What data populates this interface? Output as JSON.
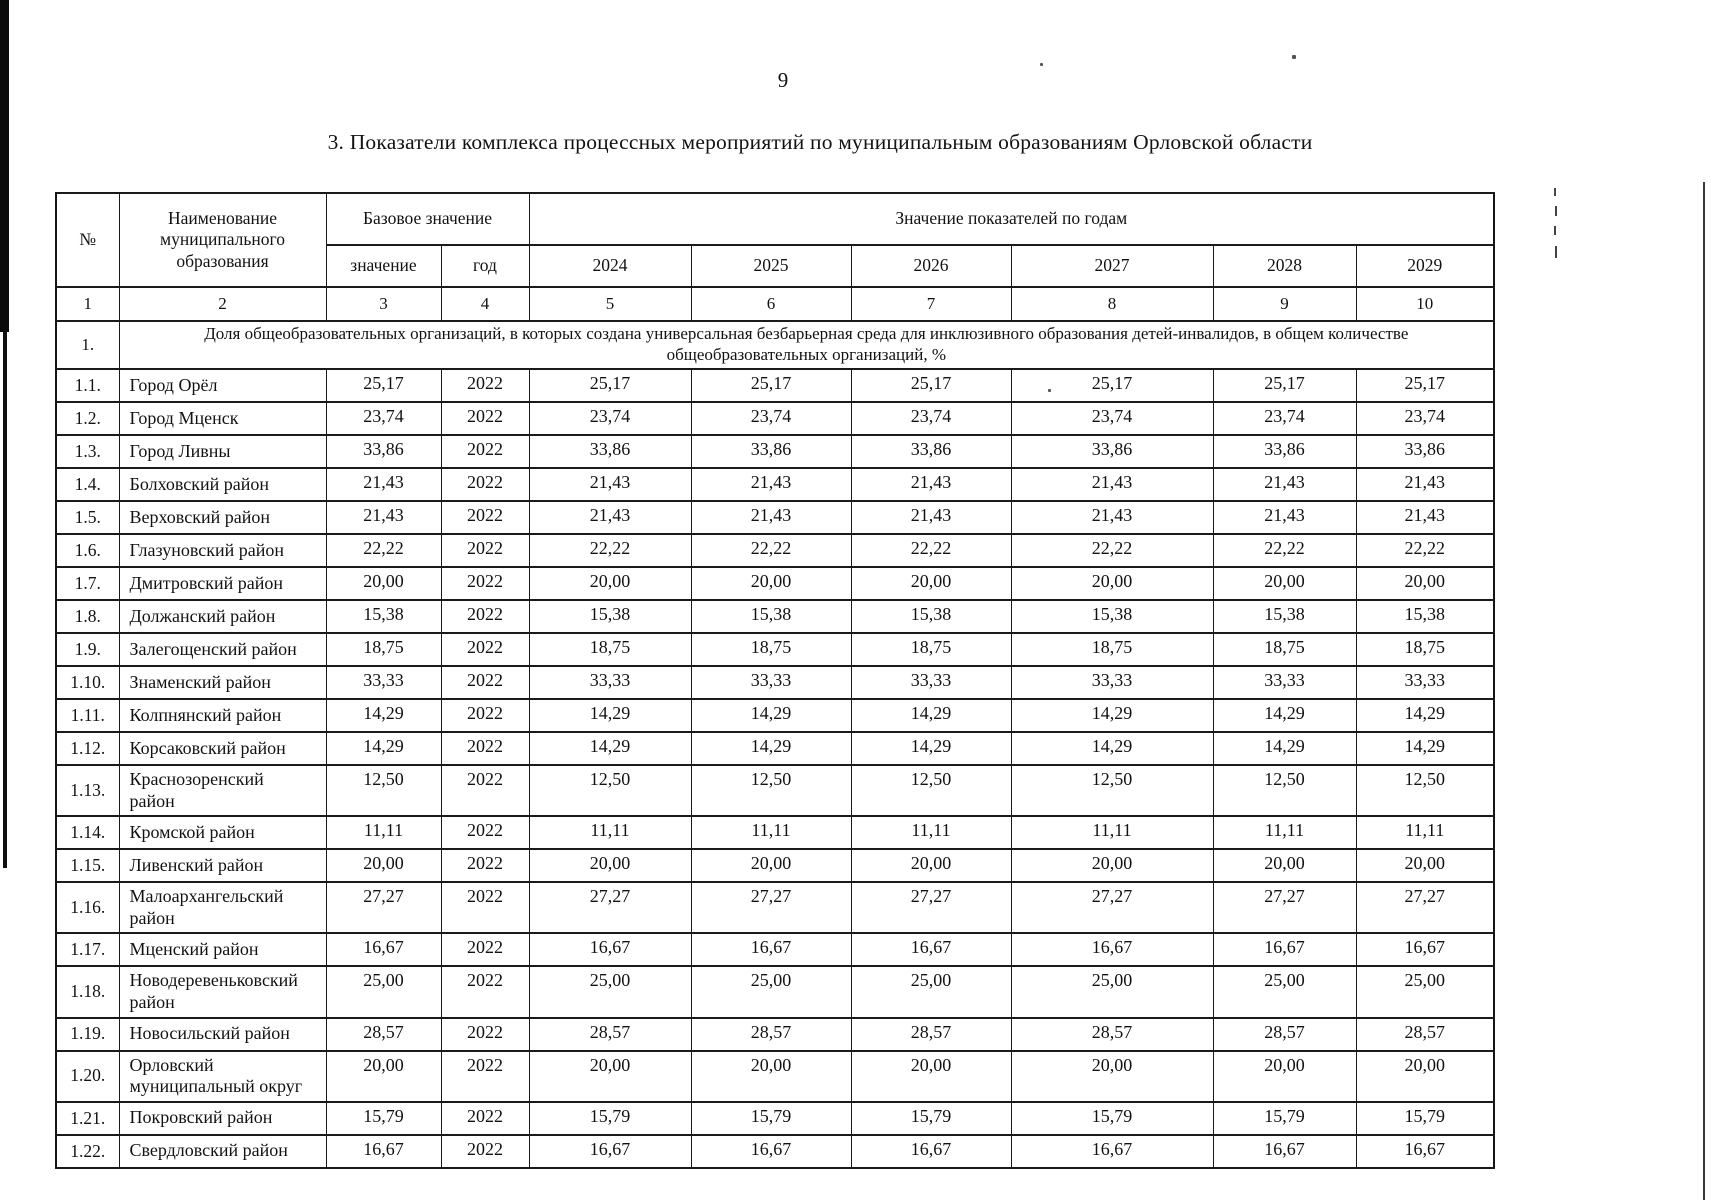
{
  "page": {
    "number": "9",
    "title": "3. Показатели комплекса процессных мероприятий по муниципальным образованиям Орловской области"
  },
  "table": {
    "header": {
      "num": "№",
      "name": "Наименование муниципального образования",
      "base_group": "Базовое значение",
      "base_value": "значение",
      "base_year": "год",
      "years_group": "Значение показателей по годам",
      "years": [
        "2024",
        "2025",
        "2026",
        "2027",
        "2028",
        "2029"
      ],
      "col_numbers": [
        "1",
        "2",
        "3",
        "4",
        "5",
        "6",
        "7",
        "8",
        "9",
        "10"
      ]
    },
    "section": {
      "num": "1.",
      "label": "Доля общеобразовательных организаций, в которых создана универсальная безбарьерная среда для инклюзивного образования детей-инвалидов, в общем количестве общеобразовательных организаций, %"
    },
    "rows": [
      {
        "num": "1.1.",
        "name": "Город Орёл",
        "value": "25,17",
        "year": "2022",
        "year_values": [
          "25,17",
          "25,17",
          "25,17",
          "25,17",
          "25,17",
          "25,17"
        ]
      },
      {
        "num": "1.2.",
        "name": "Город Мценск",
        "value": "23,74",
        "year": "2022",
        "year_values": [
          "23,74",
          "23,74",
          "23,74",
          "23,74",
          "23,74",
          "23,74"
        ]
      },
      {
        "num": "1.3.",
        "name": "Город Ливны",
        "value": "33,86",
        "year": "2022",
        "year_values": [
          "33,86",
          "33,86",
          "33,86",
          "33,86",
          "33,86",
          "33,86"
        ]
      },
      {
        "num": "1.4.",
        "name": "Болховский район",
        "value": "21,43",
        "year": "2022",
        "year_values": [
          "21,43",
          "21,43",
          "21,43",
          "21,43",
          "21,43",
          "21,43"
        ]
      },
      {
        "num": "1.5.",
        "name": "Верховский район",
        "value": "21,43",
        "year": "2022",
        "year_values": [
          "21,43",
          "21,43",
          "21,43",
          "21,43",
          "21,43",
          "21,43"
        ]
      },
      {
        "num": "1.6.",
        "name": "Глазуновский район",
        "value": "22,22",
        "year": "2022",
        "year_values": [
          "22,22",
          "22,22",
          "22,22",
          "22,22",
          "22,22",
          "22,22"
        ]
      },
      {
        "num": "1.7.",
        "name": "Дмитровский район",
        "value": "20,00",
        "year": "2022",
        "year_values": [
          "20,00",
          "20,00",
          "20,00",
          "20,00",
          "20,00",
          "20,00"
        ]
      },
      {
        "num": "1.8.",
        "name": "Должанский район",
        "value": "15,38",
        "year": "2022",
        "year_values": [
          "15,38",
          "15,38",
          "15,38",
          "15,38",
          "15,38",
          "15,38"
        ]
      },
      {
        "num": "1.9.",
        "name": "Залегощенский район",
        "value": "18,75",
        "year": "2022",
        "year_values": [
          "18,75",
          "18,75",
          "18,75",
          "18,75",
          "18,75",
          "18,75"
        ]
      },
      {
        "num": "1.10.",
        "name": "Знаменский район",
        "value": "33,33",
        "year": "2022",
        "year_values": [
          "33,33",
          "33,33",
          "33,33",
          "33,33",
          "33,33",
          "33,33"
        ]
      },
      {
        "num": "1.11.",
        "name": "Колпнянский район",
        "value": "14,29",
        "year": "2022",
        "year_values": [
          "14,29",
          "14,29",
          "14,29",
          "14,29",
          "14,29",
          "14,29"
        ]
      },
      {
        "num": "1.12.",
        "name": "Корсаковский район",
        "value": "14,29",
        "year": "2022",
        "year_values": [
          "14,29",
          "14,29",
          "14,29",
          "14,29",
          "14,29",
          "14,29"
        ]
      },
      {
        "num": "1.13.",
        "name": "Краснозоренский район",
        "value": "12,50",
        "year": "2022",
        "year_values": [
          "12,50",
          "12,50",
          "12,50",
          "12,50",
          "12,50",
          "12,50"
        ]
      },
      {
        "num": "1.14.",
        "name": "Кромской район",
        "value": "11,11",
        "year": "2022",
        "year_values": [
          "11,11",
          "11,11",
          "11,11",
          "11,11",
          "11,11",
          "11,11"
        ]
      },
      {
        "num": "1.15.",
        "name": "Ливенский район",
        "value": "20,00",
        "year": "2022",
        "year_values": [
          "20,00",
          "20,00",
          "20,00",
          "20,00",
          "20,00",
          "20,00"
        ]
      },
      {
        "num": "1.16.",
        "name": "Малоархангельский район",
        "value": "27,27",
        "year": "2022",
        "year_values": [
          "27,27",
          "27,27",
          "27,27",
          "27,27",
          "27,27",
          "27,27"
        ]
      },
      {
        "num": "1.17.",
        "name": "Мценский район",
        "value": "16,67",
        "year": "2022",
        "year_values": [
          "16,67",
          "16,67",
          "16,67",
          "16,67",
          "16,67",
          "16,67"
        ]
      },
      {
        "num": "1.18.",
        "name": "Новодеревеньковский район",
        "value": "25,00",
        "year": "2022",
        "year_values": [
          "25,00",
          "25,00",
          "25,00",
          "25,00",
          "25,00",
          "25,00"
        ]
      },
      {
        "num": "1.19.",
        "name": "Новосильский район",
        "value": "28,57",
        "year": "2022",
        "year_values": [
          "28,57",
          "28,57",
          "28,57",
          "28,57",
          "28,57",
          "28,57"
        ]
      },
      {
        "num": "1.20.",
        "name": "Орловский муниципальный округ",
        "value": "20,00",
        "year": "2022",
        "year_values": [
          "20,00",
          "20,00",
          "20,00",
          "20,00",
          "20,00",
          "20,00"
        ]
      },
      {
        "num": "1.21.",
        "name": "Покровский район",
        "value": "15,79",
        "year": "2022",
        "year_values": [
          "15,79",
          "15,79",
          "15,79",
          "15,79",
          "15,79",
          "15,79"
        ]
      },
      {
        "num": "1.22.",
        "name": "Свердловский район",
        "value": "16,67",
        "year": "2022",
        "year_values": [
          "16,67",
          "16,67",
          "16,67",
          "16,67",
          "16,67",
          "16,67"
        ]
      }
    ]
  }
}
